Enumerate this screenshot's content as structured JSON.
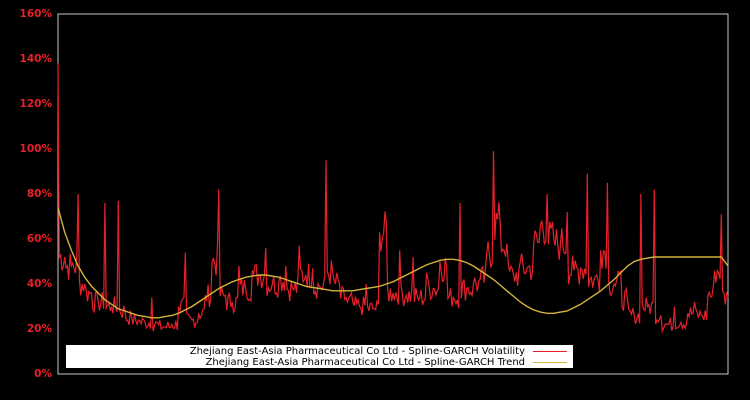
{
  "chart_data": {
    "type": "line",
    "title": "",
    "xlabel": "",
    "ylabel": "",
    "ylim": [
      0,
      160
    ],
    "y_ticks": [
      "0%",
      "20%",
      "40%",
      "60%",
      "80%",
      "100%",
      "120%",
      "140%",
      "160%"
    ],
    "x_ticks": [],
    "grid": false,
    "legend_position": "lower center (inside plot)",
    "background": "#000000",
    "axis_color": "#c8c8c8",
    "tick_label_color": "#e8202a",
    "x": [
      0,
      1,
      2,
      3,
      4,
      5,
      6,
      7,
      8,
      9,
      10,
      11,
      12,
      13,
      14,
      15,
      16,
      17,
      18,
      19,
      20,
      21,
      22,
      23,
      24,
      25,
      26,
      27,
      28,
      29,
      30,
      31,
      32,
      33,
      34,
      35,
      36,
      37,
      38,
      39,
      40,
      41,
      42,
      43,
      44,
      45,
      46,
      47,
      48,
      49,
      50,
      51,
      52,
      53,
      54,
      55,
      56,
      57,
      58,
      59,
      60,
      61,
      62,
      63,
      64,
      65,
      66,
      67,
      68,
      69,
      70,
      71,
      72,
      73,
      74,
      75,
      76,
      77,
      78,
      79,
      80,
      81,
      82,
      83,
      84,
      85,
      86,
      87,
      88,
      89,
      90,
      91,
      92,
      93,
      94,
      95,
      96,
      97,
      98,
      99,
      100
    ],
    "series": [
      {
        "name": "Zhejiang East-Asia Pharmaceutical Co Ltd - Spline-GARCH Volatility",
        "color": "#e8202a",
        "values": [
          138,
          52,
          48,
          80,
          40,
          36,
          32,
          76,
          30,
          77,
          28,
          25,
          24,
          23,
          34,
          22,
          21,
          22,
          30,
          54,
          24,
          27,
          35,
          50,
          82,
          35,
          32,
          48,
          38,
          46,
          44,
          56,
          40,
          42,
          48,
          38,
          57,
          44,
          47,
          39,
          95,
          45,
          40,
          34,
          32,
          30,
          40,
          29,
          63,
          67,
          36,
          55,
          35,
          52,
          34,
          45,
          38,
          50,
          48,
          34,
          76,
          38,
          40,
          42,
          54,
          99,
          67,
          58,
          44,
          50,
          47,
          58,
          66,
          80,
          60,
          58,
          72,
          46,
          47,
          89,
          42,
          55,
          85,
          40,
          46,
          33,
          26,
          80,
          30,
          82,
          26,
          22,
          30,
          23,
          27,
          32,
          26,
          35,
          46,
          71,
          34
        ]
      },
      {
        "name": "Zhejiang East-Asia Pharmaceutical Co Ltd - Spline-GARCH Trend",
        "color": "#d4b33a",
        "values": [
          74,
          63,
          55,
          48,
          43,
          39,
          36,
          33,
          31,
          29,
          28,
          27,
          26,
          25.5,
          25,
          25,
          25.5,
          26,
          27,
          28.5,
          30,
          32,
          34,
          36,
          38,
          39.5,
          41,
          42,
          43,
          43.5,
          44,
          44,
          43.5,
          43,
          42,
          41,
          40,
          39,
          38.5,
          38,
          37.5,
          37,
          37,
          37,
          37,
          37.5,
          38,
          38.5,
          39,
          40,
          41,
          42.5,
          44,
          45.5,
          47,
          48.5,
          49.5,
          50.5,
          51,
          51,
          50.5,
          49.5,
          48,
          46,
          44,
          42,
          39.5,
          37,
          34.5,
          32,
          30,
          28.5,
          27.5,
          27,
          27,
          27.5,
          28,
          29.5,
          31,
          33,
          35,
          37,
          39.5,
          42,
          45,
          48,
          50,
          51,
          51.5,
          52,
          52,
          52,
          52,
          52,
          52,
          52,
          52,
          52,
          52,
          52,
          48
        ]
      }
    ]
  },
  "legend": {
    "volatility_label": "Zhejiang East-Asia Pharmaceutical Co Ltd - Spline-GARCH Volatility",
    "trend_label": "Zhejiang East-Asia Pharmaceutical Co Ltd - Spline-GARCH Trend"
  }
}
